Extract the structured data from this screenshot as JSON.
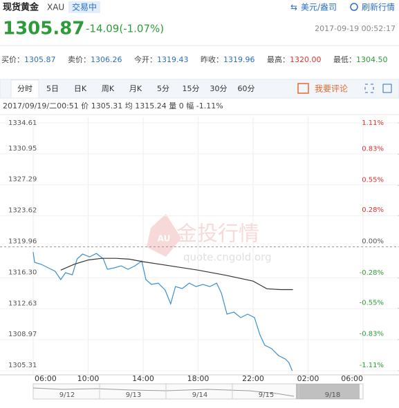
{
  "header": {
    "title": "现货黄金",
    "code": "XAU",
    "status": "交易中",
    "unit": "美元/盎司",
    "refresh": "刷新行情",
    "price": "1305.87",
    "change": "-14.09(-1.07%)",
    "time": "2017-09-19 00:52:17"
  },
  "stats": [
    {
      "label": "买价：",
      "value": "1305.87"
    },
    {
      "label": "卖价：",
      "value": "1306.26"
    },
    {
      "label": "今开：",
      "value": "1319.43"
    },
    {
      "label": "昨收：",
      "value": "1319.96"
    },
    {
      "label": "最高：",
      "value": "1320.00"
    },
    {
      "label": "最低：",
      "value": "1304.50"
    }
  ],
  "tabs": [
    "分时",
    "5日",
    "日K",
    "周K",
    "月K",
    "5分",
    "15分",
    "30分",
    "60分"
  ],
  "comment": "我要评论",
  "info": "2017/09/19/二00:51  价 1305.31  均 1315.24  量 0  幅 -1.11%",
  "watermark": {
    "brand": "金投行情",
    "site": "quote.cngold.org",
    "badge": "AU"
  },
  "navigator": {
    "labels": [
      "9/12",
      "9/13",
      "9/14",
      "9/15",
      "9/18"
    ]
  },
  "chart_data": {
    "type": "line",
    "xlim": [
      0,
      24
    ],
    "xticks": [
      {
        "value": 0,
        "label": "06:00"
      },
      {
        "value": 4,
        "label": "10:00"
      },
      {
        "value": 8,
        "label": "14:00"
      },
      {
        "value": 12,
        "label": "18:00"
      },
      {
        "value": 16,
        "label": "22:00"
      },
      {
        "value": 20,
        "label": "02:00"
      },
      {
        "value": 24,
        "label": "06:00"
      }
    ],
    "ylim": [
      1305.31,
      1334.61
    ],
    "yticks": [
      1334.61,
      1330.95,
      1327.29,
      1323.62,
      1319.96,
      {
        "value": 1316.3,
        "label": "1316.30"
      },
      1312.63,
      1308.97,
      1305.31
    ],
    "y2lim": [
      -1.11,
      1.11
    ],
    "y2ticks": [
      {
        "value": 1.11,
        "label": "1.11%"
      },
      {
        "value": 0.83,
        "label": "0.83%"
      },
      {
        "value": 0.55,
        "label": "0.55%"
      },
      {
        "value": 0.28,
        "label": "0.28%"
      },
      {
        "value": 0,
        "label": "0.00%"
      },
      {
        "value": -0.28,
        "label": "-0.28%"
      },
      {
        "value": -0.55,
        "label": "-0.55%"
      },
      {
        "value": -0.83,
        "label": "-0.83%"
      },
      {
        "value": -1.11,
        "label": "-1.11%"
      }
    ],
    "reference": 1319.96,
    "grid": true,
    "series": [
      {
        "color": "#3a8fd0",
        "x": [
          0,
          0.1,
          0.6,
          1.1,
          1.6,
          2.0,
          2.35,
          2.85,
          3.2,
          3.6,
          4.1,
          4.6,
          5.1,
          5.4,
          5.9,
          6.4,
          6.9,
          7.4,
          7.9,
          8.2,
          8.6,
          9.1,
          9.6,
          10.0,
          10.35,
          10.85,
          11.35,
          11.85,
          12.35,
          12.85,
          13.35,
          13.7,
          14.1,
          14.6,
          15.1,
          15.6,
          16.1,
          16.5,
          16.85,
          17.35,
          17.85,
          18.35,
          18.6,
          18.85
        ],
        "values": [
          1319.34,
          1318.12,
          1317.88,
          1317.47,
          1317.06,
          1316.08,
          1316.9,
          1316.65,
          1318.53,
          1319.1,
          1318.77,
          1319.18,
          1318.53,
          1317.3,
          1317.47,
          1317.71,
          1317.3,
          1317.71,
          1318.28,
          1316.08,
          1315.51,
          1315.67,
          1314.85,
          1313.22,
          1315.26,
          1315.02,
          1315.67,
          1315.26,
          1315.51,
          1315.26,
          1315.67,
          1314.45,
          1312.0,
          1312.24,
          1311.59,
          1312.0,
          1311.59,
          1309.55,
          1308.32,
          1307.92,
          1307.1,
          1306.69,
          1306.28,
          1305.31
        ]
      },
      {
        "color": "#333333",
        "x": [
          2.0,
          3,
          4,
          5,
          6,
          7,
          8,
          10,
          12,
          14,
          16,
          17,
          18,
          18.9
        ],
        "values": [
          1317.2,
          1317.9,
          1318.4,
          1318.6,
          1318.6,
          1318.5,
          1318.2,
          1317.7,
          1317.2,
          1316.6,
          1315.9,
          1315.0,
          1314.9,
          1314.9
        ]
      }
    ]
  }
}
